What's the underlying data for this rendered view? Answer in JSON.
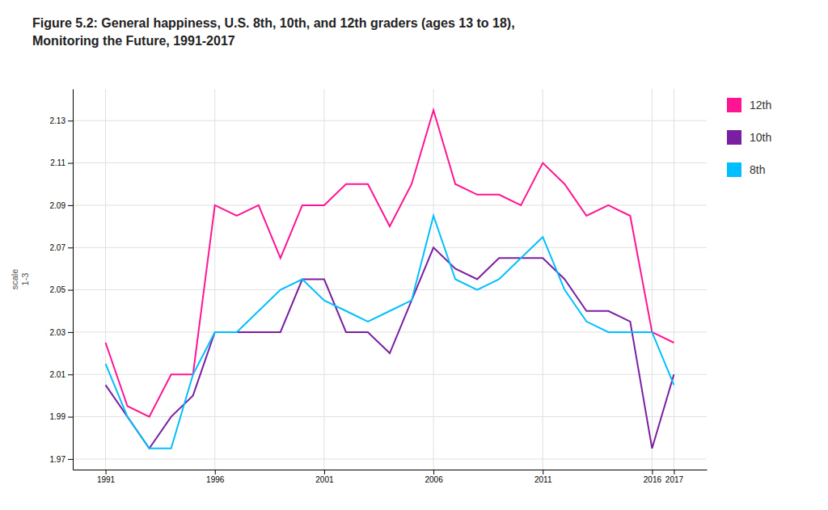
{
  "chart_data": {
    "type": "line",
    "title": "Figure 5.2: General happiness, U.S. 8th, 10th, and 12th graders (ages 13 to 18),\nMonitoring the Future, 1991-2017",
    "y_label": "scale\n1-3",
    "x": [
      1991,
      1992,
      1993,
      1994,
      1995,
      1996,
      1997,
      1998,
      1999,
      2000,
      2001,
      2002,
      2003,
      2004,
      2005,
      2006,
      2007,
      2008,
      2009,
      2010,
      2011,
      2012,
      2013,
      2014,
      2015,
      2016,
      2017
    ],
    "series": [
      {
        "name": "12th",
        "color": "#FF1493",
        "values": [
          2.025,
          1.995,
          1.99,
          2.01,
          2.01,
          2.09,
          2.085,
          2.09,
          2.065,
          2.09,
          2.09,
          2.1,
          2.1,
          2.08,
          2.1,
          2.135,
          2.1,
          2.095,
          2.095,
          2.09,
          2.11,
          2.1,
          2.085,
          2.09,
          2.085,
          2.03,
          2.025
        ]
      },
      {
        "name": "10th",
        "color": "#7B1FA2",
        "values": [
          2.005,
          1.99,
          1.975,
          1.99,
          2.0,
          2.03,
          2.03,
          2.03,
          2.03,
          2.055,
          2.055,
          2.03,
          2.03,
          2.02,
          2.045,
          2.07,
          2.06,
          2.055,
          2.065,
          2.065,
          2.065,
          2.055,
          2.04,
          2.04,
          2.035,
          1.975,
          2.01
        ]
      },
      {
        "name": "8th",
        "color": "#00BFFF",
        "values": [
          2.015,
          1.99,
          1.975,
          1.975,
          2.01,
          2.03,
          2.03,
          2.04,
          2.05,
          2.055,
          2.045,
          2.04,
          2.035,
          2.04,
          2.045,
          2.085,
          2.055,
          2.05,
          2.055,
          2.065,
          2.075,
          2.05,
          2.035,
          2.03,
          2.03,
          2.03,
          2.005
        ]
      }
    ],
    "xlim": [
      1989.5,
      2018.5
    ],
    "xticks": [
      1991,
      1996,
      2001,
      2006,
      2011,
      2016,
      2017
    ],
    "ylim": [
      1.965,
      2.145
    ],
    "yticks": [
      1.97,
      1.99,
      2.01,
      2.03,
      2.05,
      2.07,
      2.09,
      2.11,
      2.13
    ],
    "grid": true,
    "legend": "right"
  }
}
